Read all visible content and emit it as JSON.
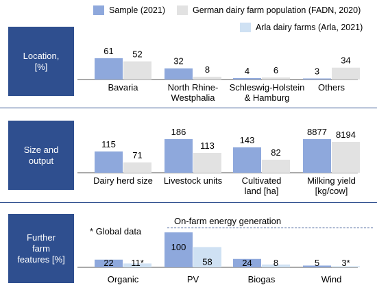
{
  "legend": [
    {
      "name": "Sample (2021)",
      "color": "#8ea8dc"
    },
    {
      "name": "German dairy farm population (FADN, 2020)",
      "color": "#e2e2e2"
    },
    {
      "name": "Arla dairy farms (Arla, 2021)",
      "color": "#cfe1f3"
    }
  ],
  "rows": {
    "location": "Location,\n[%]",
    "size": "Size and\noutput",
    "features": "Further\nfarm\nfeatures [%]"
  },
  "notes": {
    "global": "* Global data",
    "energy": "On-farm energy generation"
  },
  "chart_data": [
    {
      "type": "bar",
      "title": "Location, [%]",
      "categories": [
        "Bavaria",
        "North Rhine-Westphalia",
        "Schleswig-Holstein & Hamburg",
        "Others"
      ],
      "category_lines": [
        [
          "Bavaria"
        ],
        [
          "North Rhine-",
          "Westphalia"
        ],
        [
          "Schleswig-Holstein",
          "& Hamburg"
        ],
        [
          "Others"
        ]
      ],
      "series": [
        {
          "name": "Sample (2021)",
          "values": [
            61,
            32,
            4,
            3
          ],
          "labels": [
            "61",
            "32",
            "4",
            "3"
          ]
        },
        {
          "name": "German dairy farm population (FADN, 2020)",
          "values": [
            52,
            8,
            6,
            34
          ],
          "labels": [
            "52",
            "8",
            "6",
            "34"
          ]
        }
      ]
    },
    {
      "type": "bar",
      "title": "Size and output",
      "categories": [
        "Dairy herd size",
        "Livestock units",
        "Cultivated land [ha]",
        "Milking yield [kg/cow]"
      ],
      "category_lines": [
        [
          "Dairy herd size"
        ],
        [
          "Livestock units"
        ],
        [
          "Cultivated",
          "land [ha]"
        ],
        [
          "Milking yield",
          "[kg/cow]"
        ]
      ],
      "series": [
        {
          "name": "Sample (2021)",
          "values": [
            115,
            186,
            143,
            8877
          ],
          "labels": [
            "115",
            "186",
            "143",
            "8877"
          ]
        },
        {
          "name": "German dairy farm population (FADN, 2020)",
          "values": [
            71,
            113,
            82,
            8194
          ],
          "labels": [
            "71",
            "113",
            "82",
            "8194"
          ]
        }
      ]
    },
    {
      "type": "bar",
      "title": "Further farm features [%]",
      "categories": [
        "Organic",
        "PV",
        "Biogas",
        "Wind"
      ],
      "category_lines": [
        [
          "Organic"
        ],
        [
          "PV"
        ],
        [
          "Biogas"
        ],
        [
          "Wind"
        ]
      ],
      "series": [
        {
          "name": "Sample (2021)",
          "values": [
            22,
            100,
            24,
            5
          ],
          "labels": [
            "22",
            "100",
            "24",
            "5"
          ]
        },
        {
          "name": "Arla dairy farms (Arla, 2021)",
          "values": [
            11,
            58,
            8,
            3
          ],
          "labels": [
            "11*",
            "58",
            "8",
            "3*"
          ]
        }
      ]
    }
  ]
}
